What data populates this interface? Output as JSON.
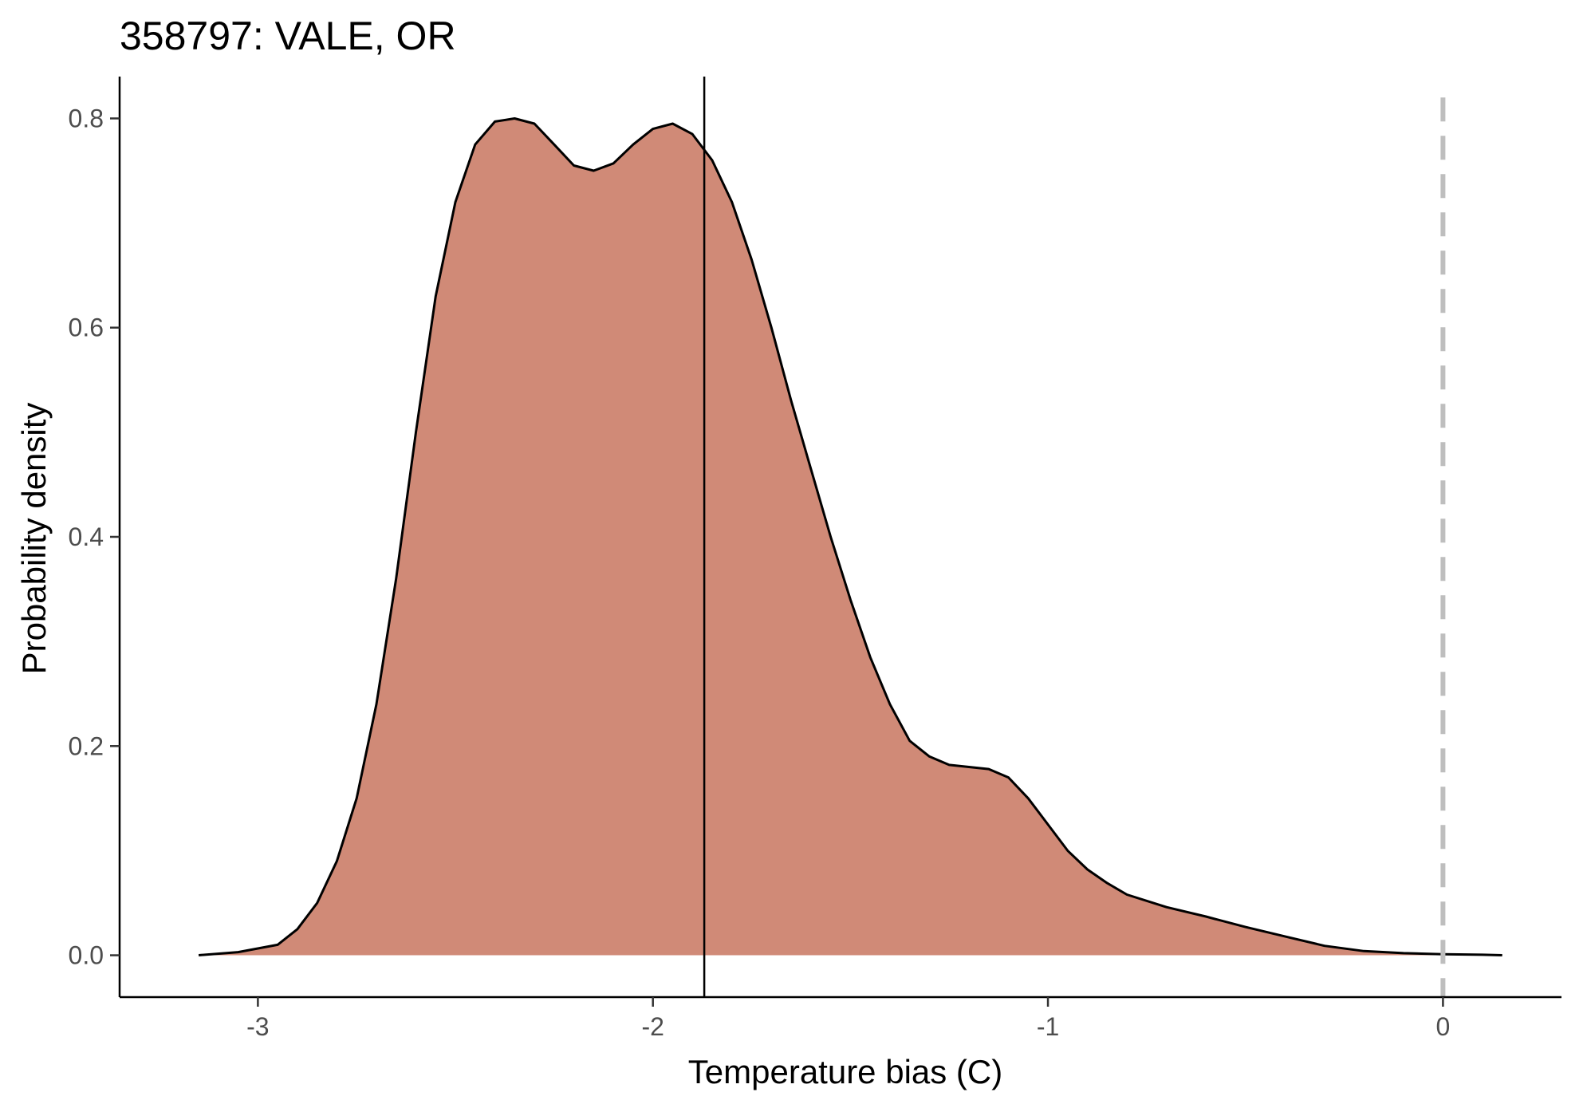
{
  "chart_data": {
    "type": "area",
    "title": "358797: VALE, OR",
    "xlabel": "Temperature bias (C)",
    "ylabel": "Probability density",
    "xlim": [
      -3.35,
      0.3
    ],
    "ylim": [
      -0.04,
      0.84
    ],
    "x_ticks": [
      -3,
      -2,
      -1,
      0
    ],
    "x_tick_labels": [
      "-3",
      "-2",
      "-1",
      "0"
    ],
    "y_ticks": [
      0.0,
      0.2,
      0.4,
      0.6,
      0.8
    ],
    "y_tick_labels": [
      "0.0",
      "0.2",
      "0.4",
      "0.6",
      "0.8"
    ],
    "grid": false,
    "fill_color": "#d08a77",
    "series": [
      {
        "x": [
          -3.15,
          -3.05,
          -2.95,
          -2.9,
          -2.85,
          -2.8,
          -2.75,
          -2.7,
          -2.65,
          -2.6,
          -2.55,
          -2.5,
          -2.45,
          -2.4,
          -2.35,
          -2.3,
          -2.25,
          -2.2,
          -2.15,
          -2.1,
          -2.05,
          -2.0,
          -1.95,
          -1.9,
          -1.85,
          -1.8,
          -1.75,
          -1.7,
          -1.65,
          -1.6,
          -1.55,
          -1.5,
          -1.45,
          -1.4,
          -1.35,
          -1.3,
          -1.25,
          -1.2,
          -1.15,
          -1.1,
          -1.05,
          -1.0,
          -0.95,
          -0.9,
          -0.85,
          -0.8,
          -0.7,
          -0.6,
          -0.5,
          -0.4,
          -0.3,
          -0.2,
          -0.1,
          0.0,
          0.1,
          0.15
        ],
        "y": [
          0.0,
          0.003,
          0.01,
          0.025,
          0.05,
          0.09,
          0.15,
          0.24,
          0.36,
          0.5,
          0.63,
          0.72,
          0.775,
          0.797,
          0.8,
          0.795,
          0.775,
          0.755,
          0.75,
          0.757,
          0.775,
          0.79,
          0.795,
          0.785,
          0.76,
          0.72,
          0.665,
          0.6,
          0.53,
          0.465,
          0.4,
          0.34,
          0.285,
          0.24,
          0.205,
          0.19,
          0.182,
          0.18,
          0.178,
          0.17,
          0.15,
          0.125,
          0.1,
          0.082,
          0.069,
          0.058,
          0.046,
          0.037,
          0.027,
          0.018,
          0.009,
          0.004,
          0.002,
          0.001,
          0.0005,
          0.0
        ]
      }
    ],
    "reference_lines": [
      {
        "axis": "x",
        "value": -1.87,
        "style": "solid",
        "color": "#000000"
      },
      {
        "axis": "x",
        "value": 0.0,
        "style": "dashed",
        "color": "#bebebe"
      }
    ]
  }
}
